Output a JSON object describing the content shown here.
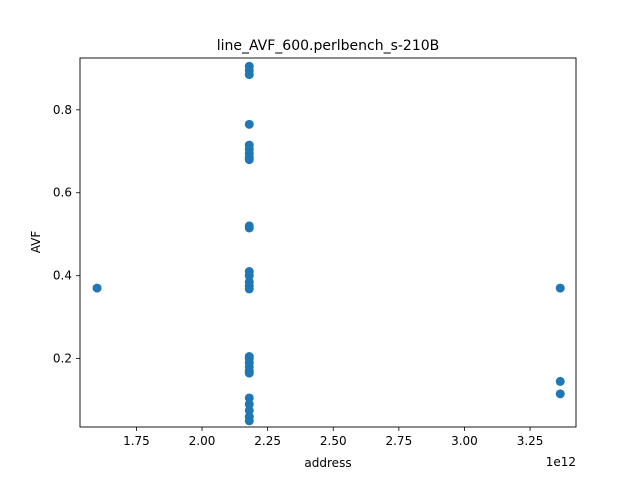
{
  "chart_data": {
    "type": "scatter",
    "title": "line_AVF_600.perlbench_s-210B",
    "xlabel": "address",
    "ylabel": "AVF",
    "x_offset_label": "1e12",
    "xlim": [
      1535000000000.0,
      3425000000000.0
    ],
    "ylim": [
      0.035,
      0.925
    ],
    "x_ticks": [
      1750000000000.0,
      2000000000000.0,
      2250000000000.0,
      2500000000000.0,
      2750000000000.0,
      3000000000000.0,
      3250000000000.0
    ],
    "x_tick_labels": [
      "1.75",
      "2.00",
      "2.25",
      "2.50",
      "2.75",
      "3.00",
      "3.25"
    ],
    "y_ticks": [
      0.2,
      0.4,
      0.6,
      0.8
    ],
    "y_tick_labels": [
      "0.2",
      "0.4",
      "0.6",
      "0.8"
    ],
    "grid": false,
    "legend": "none",
    "marker_color": "#1f77b4",
    "points": [
      {
        "x": 1600000000000.0,
        "y": 0.37
      },
      {
        "x": 2180000000000.0,
        "y": 0.905
      },
      {
        "x": 2180000000000.0,
        "y": 0.895
      },
      {
        "x": 2180000000000.0,
        "y": 0.885
      },
      {
        "x": 2180000000000.0,
        "y": 0.765
      },
      {
        "x": 2180000000000.0,
        "y": 0.715
      },
      {
        "x": 2180000000000.0,
        "y": 0.705
      },
      {
        "x": 2180000000000.0,
        "y": 0.695
      },
      {
        "x": 2180000000000.0,
        "y": 0.685
      },
      {
        "x": 2180000000000.0,
        "y": 0.68
      },
      {
        "x": 2180000000000.0,
        "y": 0.52
      },
      {
        "x": 2180000000000.0,
        "y": 0.515
      },
      {
        "x": 2180000000000.0,
        "y": 0.41
      },
      {
        "x": 2180000000000.0,
        "y": 0.4
      },
      {
        "x": 2180000000000.0,
        "y": 0.385
      },
      {
        "x": 2180000000000.0,
        "y": 0.375
      },
      {
        "x": 2180000000000.0,
        "y": 0.368
      },
      {
        "x": 2180000000000.0,
        "y": 0.205
      },
      {
        "x": 2180000000000.0,
        "y": 0.2
      },
      {
        "x": 2180000000000.0,
        "y": 0.19
      },
      {
        "x": 2180000000000.0,
        "y": 0.18
      },
      {
        "x": 2180000000000.0,
        "y": 0.17
      },
      {
        "x": 2180000000000.0,
        "y": 0.165
      },
      {
        "x": 2180000000000.0,
        "y": 0.105
      },
      {
        "x": 2180000000000.0,
        "y": 0.09
      },
      {
        "x": 2180000000000.0,
        "y": 0.075
      },
      {
        "x": 2180000000000.0,
        "y": 0.06
      },
      {
        "x": 2180000000000.0,
        "y": 0.05
      },
      {
        "x": 3365000000000.0,
        "y": 0.37
      },
      {
        "x": 3365000000000.0,
        "y": 0.145
      },
      {
        "x": 3365000000000.0,
        "y": 0.115
      }
    ]
  }
}
